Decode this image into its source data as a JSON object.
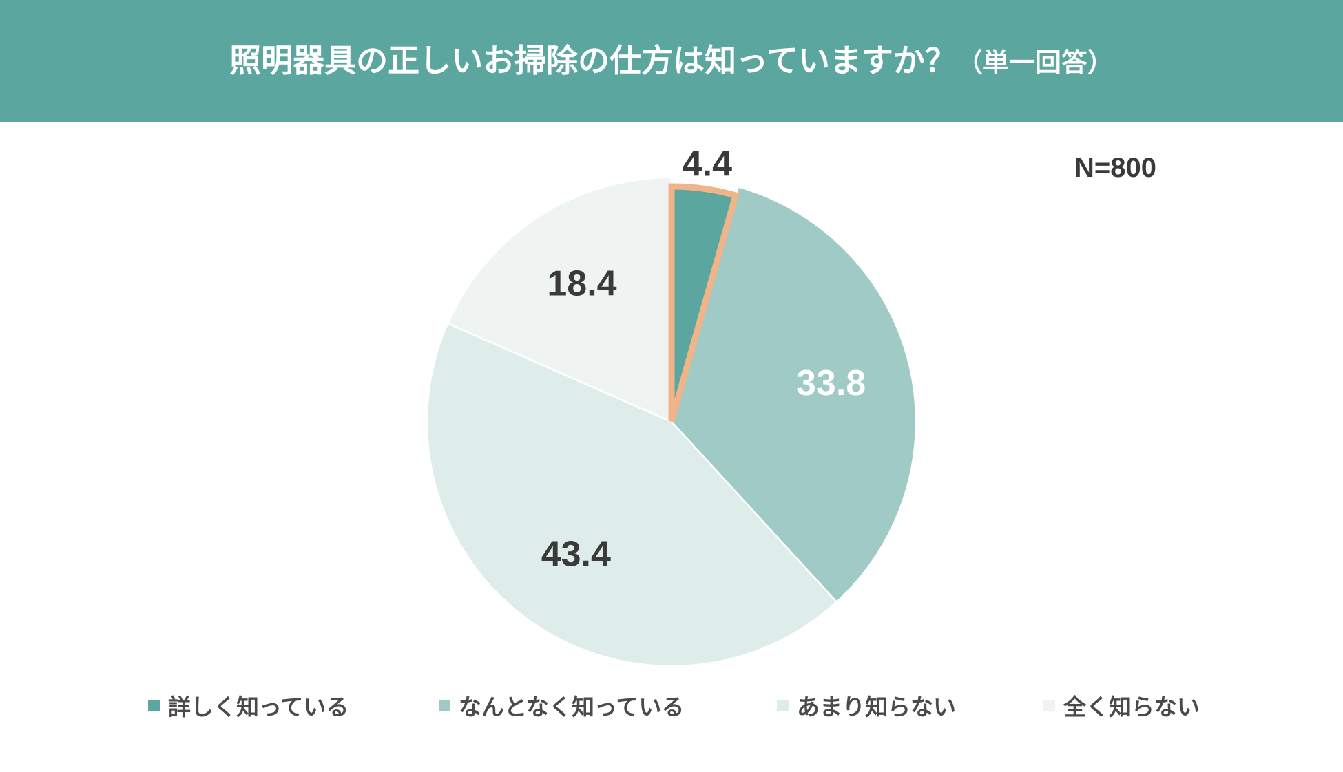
{
  "header": {
    "title": "照明器具の正しいお掃除の仕方は知っていますか？",
    "subtitle": "（単一回答）",
    "background": "#5ba7a0"
  },
  "sample_size": "N=800",
  "chart_data": {
    "type": "pie",
    "title": "照明器具の正しいお掃除の仕方は知っていますか？（単一回答）",
    "categories": [
      "詳しく知っている",
      "なんとなく知っている",
      "あまり知らない",
      "全く知らない"
    ],
    "values": [
      4.4,
      33.8,
      43.4,
      18.4
    ],
    "data_labels": [
      "4.4",
      "33.8",
      "43.4",
      "18.4"
    ],
    "colors": [
      "#5ba7a0",
      "#9fcac6",
      "#deecea",
      "#eff4f3"
    ],
    "label_colors": [
      "#3a3a3a",
      "#ffffff",
      "#3a3a3a",
      "#3a3a3a"
    ],
    "highlight": {
      "index": 0,
      "outline_color": "#f0b488"
    },
    "start_angle_deg": 0,
    "direction": "clockwise",
    "legend_position": "bottom"
  }
}
